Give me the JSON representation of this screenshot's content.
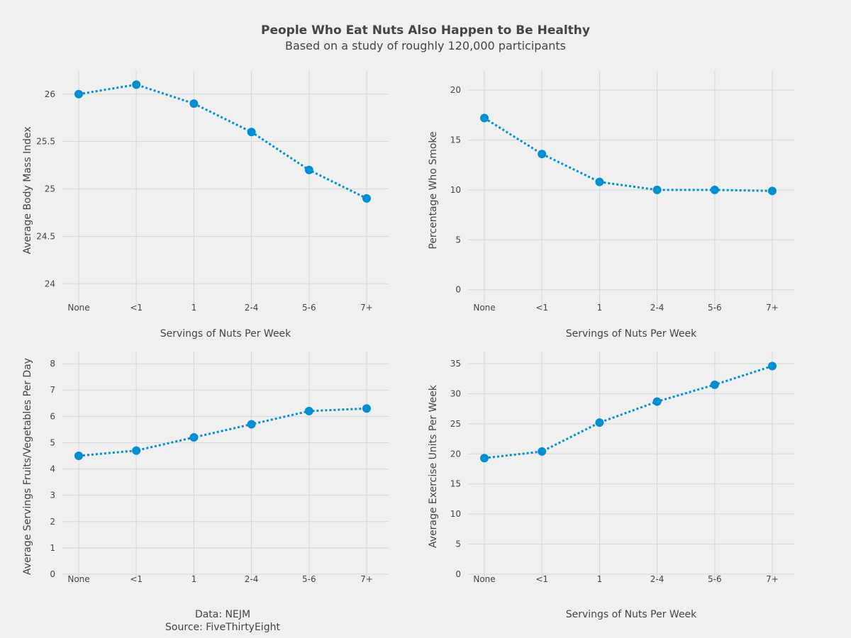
{
  "header": {
    "title": "People Who Eat Nuts Also Happen to Be Healthy",
    "subtitle": "Based on a study of roughly 120,000 participants"
  },
  "source_note": {
    "data_line": "Data: NEJM",
    "source_line": "Source: FiveThirtyEight"
  },
  "colors": {
    "background": "#f0f0f0",
    "grid": "#d6d6d6",
    "series": "#008fd5",
    "text": "#444444"
  },
  "chart_data": [
    {
      "type": "line",
      "categories": [
        "None",
        "<1",
        "1",
        "2-4",
        "5-6",
        "7+"
      ],
      "values": [
        26.0,
        26.1,
        25.9,
        25.6,
        25.2,
        24.9
      ],
      "xlabel": "Servings of Nuts Per Week",
      "ylabel": "Average Body Mass Index",
      "ylim": [
        23.8,
        26.2
      ],
      "yticks": [
        24,
        24.5,
        25,
        25.5,
        26
      ],
      "ytick_labels": [
        "24",
        "24.5",
        "25",
        "25.5",
        "26"
      ],
      "line_style": "dotted",
      "grid": true
    },
    {
      "type": "line",
      "categories": [
        "None",
        "<1",
        "1",
        "2-4",
        "5-6",
        "7+"
      ],
      "values": [
        17.2,
        13.6,
        10.8,
        10.0,
        10.0,
        9.9
      ],
      "xlabel": "Servings of Nuts Per Week",
      "ylabel": "Percentage Who Smoke",
      "ylim": [
        -1.3,
        21.5
      ],
      "yticks": [
        0,
        5,
        10,
        15,
        20
      ],
      "ytick_labels": [
        "0",
        "5",
        "10",
        "15",
        "20"
      ],
      "line_style": "dotted",
      "grid": true
    },
    {
      "type": "line",
      "categories": [
        "None",
        "<1",
        "1",
        "2-4",
        "5-6",
        "7+"
      ],
      "values": [
        4.5,
        4.7,
        5.2,
        5.7,
        6.2,
        6.3
      ],
      "xlabel": "",
      "ylabel": "Average Servings Fruits/Vegetables Per Day",
      "ylim": [
        0,
        8.3
      ],
      "yticks": [
        0,
        1,
        2,
        3,
        4,
        5,
        6,
        7,
        8
      ],
      "ytick_labels": [
        "0",
        "1",
        "2",
        "3",
        "4",
        "5",
        "6",
        "7",
        "8"
      ],
      "line_style": "dotted",
      "grid": true
    },
    {
      "type": "line",
      "categories": [
        "None",
        "<1",
        "1",
        "2-4",
        "5-6",
        "7+"
      ],
      "values": [
        19.3,
        20.4,
        25.2,
        28.7,
        31.5,
        34.6
      ],
      "xlabel": "Servings of Nuts Per Week",
      "ylabel": "Average Exercise Units Per Week",
      "ylim": [
        0,
        36.3
      ],
      "yticks": [
        0,
        5,
        10,
        15,
        20,
        25,
        30,
        35
      ],
      "ytick_labels": [
        "0",
        "5",
        "10",
        "15",
        "20",
        "25",
        "30",
        "35"
      ],
      "line_style": "dotted",
      "grid": true
    }
  ]
}
